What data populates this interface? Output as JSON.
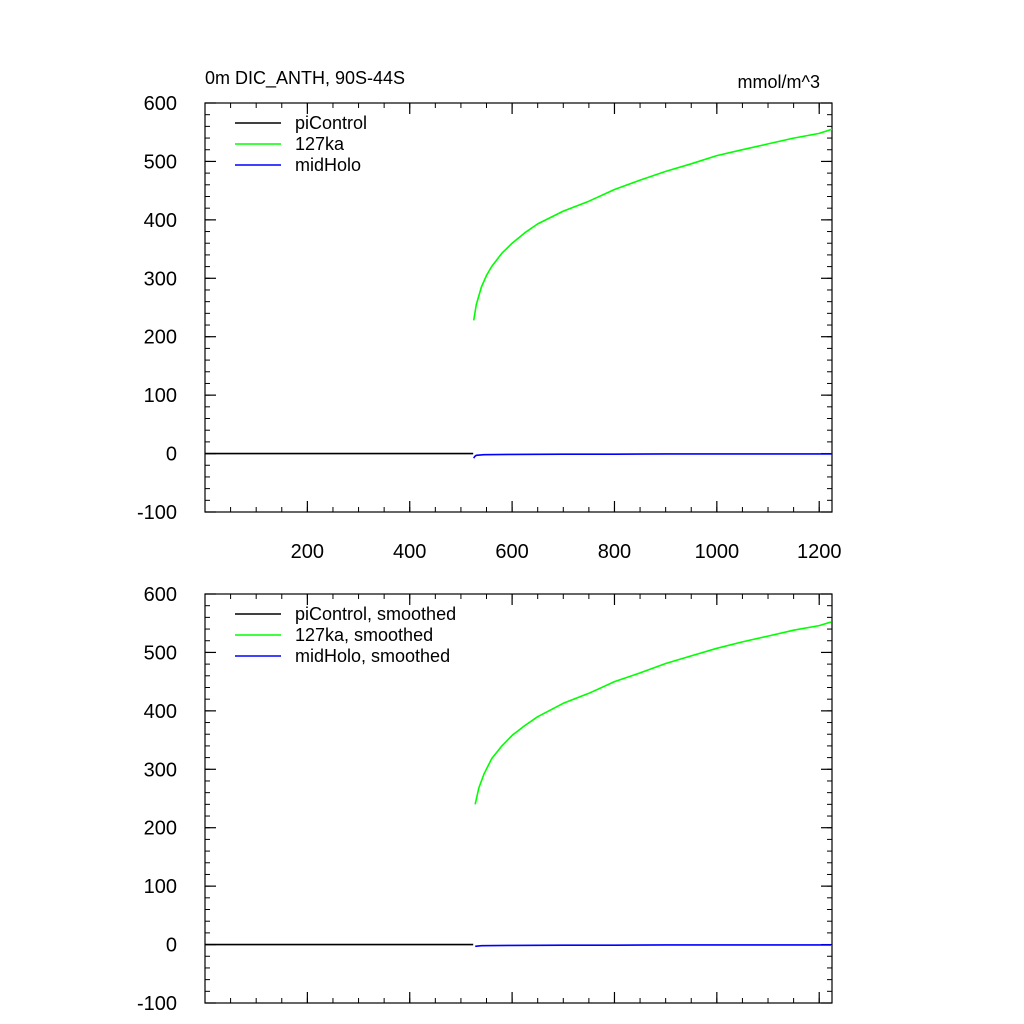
{
  "chart_data": [
    {
      "type": "line",
      "title": "0m DIC_ANTH, 90S-44S",
      "units": "mmol/m^3",
      "xlim": [
        0,
        1225
      ],
      "ylim": [
        -100,
        600
      ],
      "y_ticks": [
        -100,
        0,
        100,
        200,
        300,
        400,
        500,
        600
      ],
      "x_ticks": [
        200,
        400,
        600,
        800,
        1000,
        1200
      ],
      "x_tick_labels_shown": true,
      "legend_position": "top-left",
      "series": [
        {
          "name": "piControl",
          "color": "#000000",
          "x": [
            1,
            100,
            200,
            300,
            400,
            524
          ],
          "y": [
            0,
            0,
            0,
            0,
            0,
            0
          ]
        },
        {
          "name": "127ka",
          "color": "#00ff00",
          "x": [
            525,
            530,
            540,
            550,
            560,
            580,
            600,
            625,
            650,
            700,
            750,
            800,
            850,
            900,
            950,
            1000,
            1050,
            1100,
            1150,
            1200,
            1225
          ],
          "y": [
            228,
            255,
            285,
            305,
            320,
            343,
            360,
            378,
            393,
            415,
            432,
            452,
            468,
            483,
            496,
            510,
            520,
            530,
            540,
            548,
            555
          ]
        },
        {
          "name": "midHolo",
          "color": "#0000ff",
          "x": [
            525,
            527,
            530,
            545,
            600,
            700,
            800,
            900,
            1000,
            1100,
            1225
          ],
          "y": [
            -8,
            -5,
            -3,
            -2,
            -1.5,
            -1,
            -1,
            -0.5,
            -0.5,
            -0.5,
            -0.5
          ]
        }
      ]
    },
    {
      "type": "line",
      "title": "",
      "units": "",
      "xlim": [
        0,
        1225
      ],
      "ylim": [
        -100,
        600
      ],
      "y_ticks": [
        -100,
        0,
        100,
        200,
        300,
        400,
        500,
        600
      ],
      "x_ticks": [
        200,
        400,
        600,
        800,
        1000,
        1200
      ],
      "x_tick_labels_shown": false,
      "legend_position": "top-left",
      "series": [
        {
          "name": "piControl, smoothed",
          "color": "#000000",
          "x": [
            1,
            100,
            200,
            300,
            400,
            524
          ],
          "y": [
            0,
            0,
            0,
            0,
            0,
            0
          ]
        },
        {
          "name": "127ka, smoothed",
          "color": "#00ff00",
          "x": [
            528,
            535,
            545,
            560,
            580,
            600,
            625,
            650,
            700,
            750,
            800,
            850,
            900,
            950,
            1000,
            1050,
            1100,
            1150,
            1200,
            1223
          ],
          "y": [
            240,
            268,
            292,
            318,
            340,
            358,
            375,
            390,
            413,
            430,
            450,
            465,
            481,
            494,
            507,
            518,
            528,
            538,
            546,
            552
          ]
        },
        {
          "name": "midHolo, smoothed",
          "color": "#0000ff",
          "x": [
            528,
            540,
            600,
            700,
            800,
            900,
            1000,
            1100,
            1223
          ],
          "y": [
            -3,
            -2,
            -1.5,
            -1,
            -1,
            -0.5,
            -0.5,
            -0.5,
            -0.5
          ]
        }
      ]
    }
  ]
}
